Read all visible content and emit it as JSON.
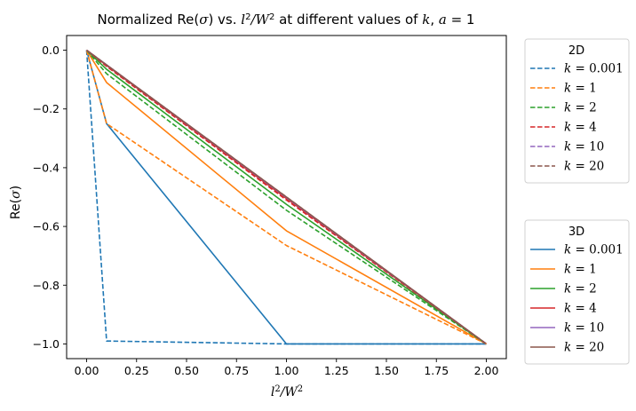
{
  "chart_data": {
    "type": "line",
    "title": "Normalized Re(σ) vs. l²/W² at different values of k, a = 1",
    "xlabel": "l²/W²",
    "ylabel": "Re(σ)",
    "xlim": [
      -0.1,
      2.1
    ],
    "ylim": [
      -1.05,
      0.05
    ],
    "xticks": [
      0.0,
      0.25,
      0.5,
      0.75,
      1.0,
      1.25,
      1.5,
      1.75,
      2.0
    ],
    "xtick_labels": [
      "0.00",
      "0.25",
      "0.50",
      "0.75",
      "1.00",
      "1.25",
      "1.50",
      "1.75",
      "2.00"
    ],
    "yticks": [
      0.0,
      -0.2,
      -0.4,
      -0.6,
      -0.8,
      -1.0
    ],
    "ytick_labels": [
      "0.0",
      "−0.2",
      "−0.4",
      "−0.6",
      "−0.8",
      "−1.0"
    ],
    "grid": false,
    "x": [
      0.0,
      0.1,
      1.0,
      2.0
    ],
    "legends": [
      {
        "title": "2D",
        "placement": "right-top",
        "style": "dashed"
      },
      {
        "title": "3D",
        "placement": "right-bottom",
        "style": "solid"
      }
    ],
    "series": [
      {
        "name": "k = 0.001",
        "group": "2D",
        "color": "#1f77b4",
        "dash": true,
        "values": [
          0.0,
          -0.99,
          -1.0,
          -1.0
        ]
      },
      {
        "name": "k = 1",
        "group": "2D",
        "color": "#ff7f0e",
        "dash": true,
        "values": [
          0.0,
          -0.25,
          -0.665,
          -1.0
        ]
      },
      {
        "name": "k = 2",
        "group": "2D",
        "color": "#2ca02c",
        "dash": true,
        "values": [
          0.0,
          -0.08,
          -0.545,
          -1.0
        ]
      },
      {
        "name": "k = 4",
        "group": "2D",
        "color": "#d62728",
        "dash": true,
        "values": [
          0.0,
          -0.055,
          -0.51,
          -1.0
        ]
      },
      {
        "name": "k = 10",
        "group": "2D",
        "color": "#9467bd",
        "dash": true,
        "values": [
          0.0,
          -0.05,
          -0.502,
          -1.0
        ]
      },
      {
        "name": "k = 20",
        "group": "2D",
        "color": "#8c564b",
        "dash": true,
        "values": [
          0.0,
          -0.05,
          -0.5,
          -1.0
        ]
      },
      {
        "name": "k = 0.001",
        "group": "3D",
        "color": "#1f77b4",
        "dash": false,
        "values": [
          0.0,
          -0.25,
          -1.0,
          -1.0
        ]
      },
      {
        "name": "k = 1",
        "group": "3D",
        "color": "#ff7f0e",
        "dash": false,
        "values": [
          0.0,
          -0.11,
          -0.615,
          -1.0
        ]
      },
      {
        "name": "k = 2",
        "group": "3D",
        "color": "#2ca02c",
        "dash": false,
        "values": [
          0.0,
          -0.065,
          -0.525,
          -1.0
        ]
      },
      {
        "name": "k = 4",
        "group": "3D",
        "color": "#d62728",
        "dash": false,
        "values": [
          0.0,
          -0.052,
          -0.505,
          -1.0
        ]
      },
      {
        "name": "k = 10",
        "group": "3D",
        "color": "#9467bd",
        "dash": false,
        "values": [
          0.0,
          -0.05,
          -0.501,
          -1.0
        ]
      },
      {
        "name": "k = 20",
        "group": "3D",
        "color": "#8c564b",
        "dash": false,
        "values": [
          0.0,
          -0.05,
          -0.5,
          -1.0
        ]
      }
    ]
  }
}
